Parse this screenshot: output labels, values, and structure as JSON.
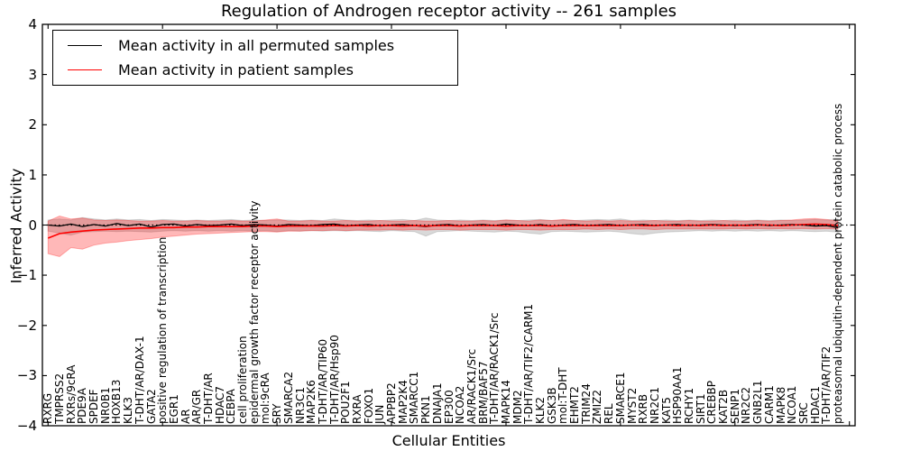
{
  "title": "Regulation of Androgen receptor activity -- 261 samples",
  "chart_data": {
    "type": "line",
    "title": "Regulation of Androgen receptor activity -- 261 samples",
    "xlabel": "Cellular Entities",
    "ylabel": "Inferred Activity",
    "ylim": [
      -4,
      4
    ],
    "yticks": [
      4,
      3,
      2,
      1,
      0,
      -1,
      -2,
      -3,
      -4
    ],
    "yticklabels": [
      "4",
      "3",
      "2",
      "1",
      "0",
      "−1",
      "−2",
      "−3",
      "−4"
    ],
    "xtick_units": [
      0,
      10,
      20,
      30,
      40,
      50,
      60,
      70
    ],
    "grid": false,
    "legend_position": "upper left",
    "zero_line": true,
    "colors": {
      "permuted_line": "#000000",
      "patient_line": "#ff0000",
      "permuted_band": "rgba(130,130,130,0.30)",
      "patient_band": "rgba(255,0,0,0.28)",
      "frame": "#000000"
    },
    "legend": [
      {
        "label": "Mean activity in all permuted samples",
        "color": "#000000"
      },
      {
        "label": "Mean activity in patient samples",
        "color": "#ff0000"
      }
    ],
    "categories": [
      "RXRG",
      "TMPRSS2",
      "RXRs/9cRA",
      "PDE9A",
      "SPDEF",
      "NR0B1",
      "HOXB13",
      "KLK3",
      "T-DHT/AR/DAX-1",
      "GATA2",
      "positive regulation of transcription",
      "EGR1",
      "AR",
      "AR/GR",
      "T-DHT/AR",
      "HDAC7",
      "CEBPA",
      "cell proliferation",
      "epidermal growth factor receptor activity",
      "mol:9cRA",
      "SRY",
      "SMARCA2",
      "NR3C1",
      "MAP2K6",
      "T-DHT/AR/TIP60",
      "T-DHT/AR/Hsp90",
      "POU2F1",
      "RXRA",
      "FOXO1",
      "JUN",
      "APPBP2",
      "MAP2K4",
      "SMARCC1",
      "PKN1",
      "DNAJA1",
      "EP300",
      "NCOA2",
      "AR/RACK1/Src",
      "BRM/BAF57",
      "T-DHT/AR/RACK1/Src",
      "MAPK14",
      "MDM2",
      "T-DHT/AR/TIF2/CARM1",
      "KLK2",
      "GSK3B",
      "mol:T-DHT",
      "EHMT2",
      "TRIM24",
      "ZMIZ2",
      "REL",
      "SMARCE1",
      "MYST2",
      "RXRB",
      "NR2C1",
      "KAT5",
      "HSP90AA1",
      "RCHY1",
      "SIRT1",
      "CREBBP",
      "KAT2B",
      "SENP1",
      "NR2C2",
      "GNB2L1",
      "CARM1",
      "MAPK8",
      "NCOA1",
      "SRC",
      "HDAC1",
      "T-DHT/AR/TIF2",
      "proteasomal ubiquitin-dependent protein catabolic process"
    ],
    "series": [
      {
        "name": "Mean activity in all permuted samples",
        "color": "#000000",
        "values": [
          0,
          -0.02,
          0.02,
          -0.03,
          0.01,
          -0.02,
          0.03,
          -0.01,
          0.02,
          -0.04,
          0.01,
          0.02,
          -0.02,
          0.01,
          -0.01,
          0,
          0.02,
          -0.01,
          0.01,
          0,
          -0.02,
          0.01,
          0,
          -0.01,
          0.01,
          0.02,
          -0.01,
          0,
          0.01,
          -0.02,
          0,
          0.01,
          -0.01,
          -0.03,
          0,
          0.01,
          -0.02,
          0,
          0.01,
          -0.01,
          0.02,
          0,
          -0.01,
          0.01,
          -0.02,
          0,
          0.01,
          -0.01,
          0,
          0.01,
          -0.01,
          0,
          0.01,
          -0.01,
          0,
          0.01,
          -0.01,
          0,
          0.01,
          0,
          -0.01,
          0,
          0.01,
          -0.01,
          0,
          0.01,
          0,
          -0.02,
          -0.01,
          -0.05
        ]
      },
      {
        "name": "Mean activity in patient samples",
        "color": "#ff0000",
        "values": [
          -0.26,
          -0.17,
          -0.14,
          -0.12,
          -0.1,
          -0.09,
          -0.08,
          -0.07,
          -0.06,
          -0.06,
          -0.05,
          -0.05,
          -0.04,
          -0.04,
          -0.03,
          -0.03,
          -0.03,
          -0.03,
          -0.02,
          -0.02,
          -0.03,
          -0.02,
          -0.02,
          -0.02,
          -0.02,
          -0.01,
          -0.02,
          -0.01,
          -0.02,
          -0.01,
          -0.01,
          -0.02,
          -0.01,
          -0.02,
          -0.01,
          -0.01,
          -0.02,
          -0.01,
          -0.01,
          -0.01,
          -0.02,
          -0.01,
          -0.01,
          -0.01,
          -0.02,
          -0.01,
          -0.01,
          -0.01,
          -0.01,
          -0.01,
          -0.01,
          0,
          -0.01,
          -0.01,
          0,
          -0.01,
          0,
          -0.01,
          0,
          -0.01,
          0,
          -0.01,
          0,
          0,
          -0.01,
          0,
          0.01,
          0.02,
          0.01,
          -0.01
        ]
      }
    ],
    "bands": [
      {
        "name": "permuted samples range",
        "color": "rgba(130,130,130,0.30)",
        "upper": [
          0.1,
          0.12,
          0.1,
          0.15,
          0.12,
          0.1,
          0.12,
          0.1,
          0.11,
          0.09,
          0.11,
          0.1,
          0.09,
          0.1,
          0.09,
          0.1,
          0.11,
          0.09,
          0.1,
          0.09,
          0.1,
          0.1,
          0.09,
          0.1,
          0.09,
          0.12,
          0.1,
          0.09,
          0.1,
          0.09,
          0.1,
          0.11,
          0.09,
          0.14,
          0.1,
          0.09,
          0.1,
          0.09,
          0.1,
          0.09,
          0.1,
          0.09,
          0.1,
          0.11,
          0.09,
          0.1,
          0.09,
          0.1,
          0.11,
          0.1,
          0.12,
          0.09,
          0.1,
          0.09,
          0.1,
          0.09,
          0.1,
          0.09,
          0.1,
          0.09,
          0.1,
          0.09,
          0.1,
          0.09,
          0.1,
          0.09,
          0.1,
          0.11,
          0.1,
          0.12
        ],
        "lower": [
          -0.12,
          -0.16,
          -0.2,
          -0.14,
          -0.13,
          -0.12,
          -0.13,
          -0.12,
          -0.13,
          -0.14,
          -0.12,
          -0.11,
          -0.12,
          -0.11,
          -0.12,
          -0.11,
          -0.12,
          -0.11,
          -0.12,
          -0.11,
          -0.13,
          -0.11,
          -0.12,
          -0.11,
          -0.12,
          -0.11,
          -0.12,
          -0.11,
          -0.12,
          -0.13,
          -0.11,
          -0.12,
          -0.13,
          -0.22,
          -0.13,
          -0.12,
          -0.11,
          -0.12,
          -0.13,
          -0.14,
          -0.12,
          -0.13,
          -0.16,
          -0.18,
          -0.13,
          -0.12,
          -0.13,
          -0.14,
          -0.13,
          -0.12,
          -0.14,
          -0.17,
          -0.19,
          -0.16,
          -0.14,
          -0.13,
          -0.12,
          -0.11,
          -0.12,
          -0.11,
          -0.12,
          -0.11,
          -0.12,
          -0.11,
          -0.12,
          -0.11,
          -0.12,
          -0.13,
          -0.12,
          -0.14
        ]
      },
      {
        "name": "patient samples range",
        "color": "rgba(255,0,0,0.28)",
        "upper": [
          0.08,
          0.18,
          0.12,
          0.14,
          0.1,
          0.09,
          0.1,
          0.09,
          0.08,
          0.08,
          0.09,
          0.08,
          0.08,
          0.09,
          0.08,
          0.08,
          0.09,
          0.08,
          0.08,
          0.1,
          0.12,
          0.08,
          0.08,
          0.09,
          0.08,
          0.08,
          0.09,
          0.08,
          0.08,
          0.09,
          0.08,
          0.08,
          0.09,
          0.08,
          0.08,
          0.09,
          0.08,
          0.08,
          0.09,
          0.08,
          0.1,
          0.09,
          0.08,
          0.1,
          0.09,
          0.11,
          0.09,
          0.08,
          0.09,
          0.08,
          0.09,
          0.08,
          0.08,
          0.09,
          0.08,
          0.08,
          0.09,
          0.08,
          0.08,
          0.09,
          0.08,
          0.08,
          0.09,
          0.08,
          0.09,
          0.1,
          0.12,
          0.13,
          0.11,
          0.08
        ],
        "lower": [
          -0.57,
          -0.63,
          -0.45,
          -0.48,
          -0.4,
          -0.36,
          -0.34,
          -0.31,
          -0.29,
          -0.27,
          -0.24,
          -0.22,
          -0.2,
          -0.18,
          -0.17,
          -0.16,
          -0.15,
          -0.14,
          -0.13,
          -0.13,
          -0.14,
          -0.12,
          -0.12,
          -0.11,
          -0.11,
          -0.1,
          -0.11,
          -0.1,
          -0.1,
          -0.1,
          -0.09,
          -0.1,
          -0.09,
          -0.1,
          -0.09,
          -0.09,
          -0.1,
          -0.09,
          -0.09,
          -0.09,
          -0.1,
          -0.09,
          -0.09,
          -0.1,
          -0.09,
          -0.09,
          -0.09,
          -0.08,
          -0.09,
          -0.08,
          -0.09,
          -0.08,
          -0.08,
          -0.09,
          -0.08,
          -0.08,
          -0.08,
          -0.08,
          -0.08,
          -0.08,
          -0.07,
          -0.08,
          -0.07,
          -0.08,
          -0.07,
          -0.08,
          -0.07,
          -0.08,
          -0.07,
          -0.08
        ]
      }
    ]
  }
}
